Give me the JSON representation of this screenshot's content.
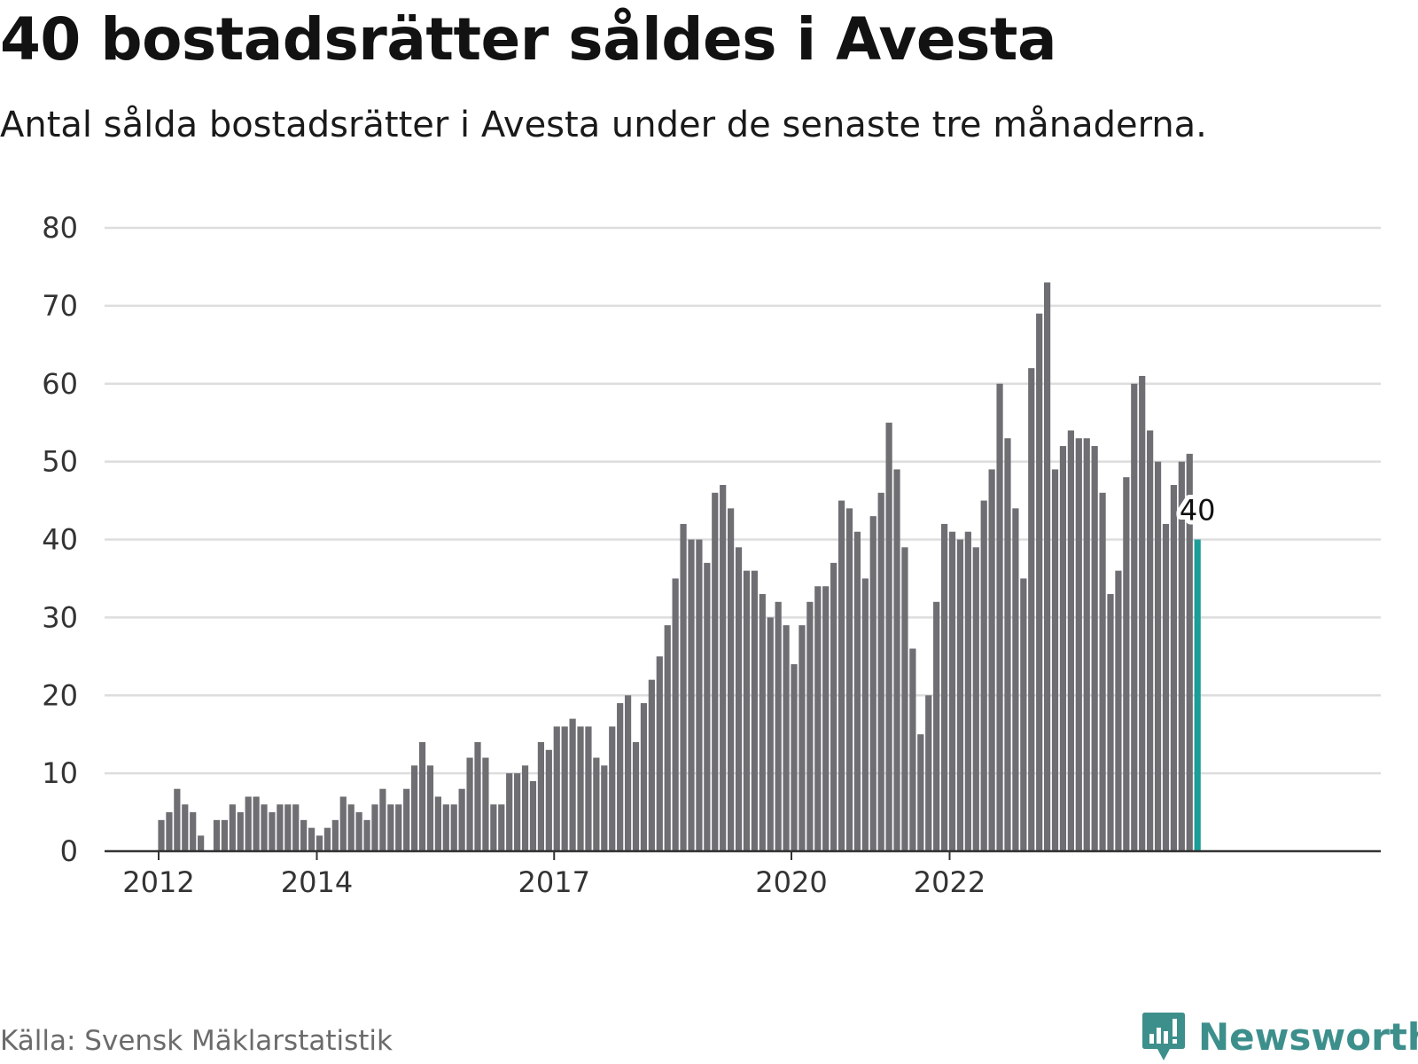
{
  "title": "40 bostadsrätter såldes i Avesta",
  "subtitle": "Antal sålda bostadsrätter i Avesta under de senaste tre månaderna.",
  "source": "Källa: Svensk Mäklarstatistik",
  "brand": {
    "name": "Newsworthy",
    "icon": "newsworthy-logo-icon",
    "color": "#3d8f8c"
  },
  "colors": {
    "bar": "#6e6e73",
    "highlight": "#1a9e97",
    "grid": "#dddddd",
    "axis": "#333333"
  },
  "chart_data": {
    "type": "bar",
    "ylim": [
      0,
      80
    ],
    "yticks": [
      0,
      10,
      20,
      30,
      40,
      50,
      60,
      70,
      80
    ],
    "xticks": [
      {
        "label": "2012",
        "index": 0
      },
      {
        "label": "2014",
        "index": 20
      },
      {
        "label": "2017",
        "index": 50
      },
      {
        "label": "2020",
        "index": 80
      },
      {
        "label": "2022",
        "index": 100
      }
    ],
    "grid": true,
    "values": [
      4,
      5,
      8,
      6,
      5,
      2,
      0,
      4,
      4,
      6,
      5,
      7,
      7,
      6,
      5,
      6,
      6,
      6,
      4,
      3,
      2,
      3,
      4,
      7,
      6,
      5,
      4,
      6,
      8,
      6,
      6,
      8,
      11,
      14,
      11,
      7,
      6,
      6,
      8,
      12,
      14,
      12,
      6,
      6,
      10,
      10,
      11,
      9,
      14,
      13,
      16,
      16,
      17,
      16,
      16,
      12,
      11,
      16,
      19,
      20,
      14,
      19,
      22,
      25,
      29,
      35,
      42,
      40,
      40,
      37,
      46,
      47,
      44,
      39,
      36,
      36,
      33,
      30,
      32,
      29,
      24,
      29,
      32,
      34,
      34,
      37,
      45,
      44,
      41,
      35,
      43,
      46,
      55,
      49,
      39,
      26,
      15,
      20,
      32,
      42,
      41,
      40,
      41,
      39,
      45,
      49,
      60,
      53,
      44,
      35,
      62,
      69,
      73,
      49,
      52,
      54,
      53,
      53,
      52,
      46,
      33,
      36,
      48,
      60,
      61,
      54,
      50,
      42,
      47,
      50,
      51,
      40
    ],
    "highlight_index": 131,
    "highlight_label": "40"
  }
}
